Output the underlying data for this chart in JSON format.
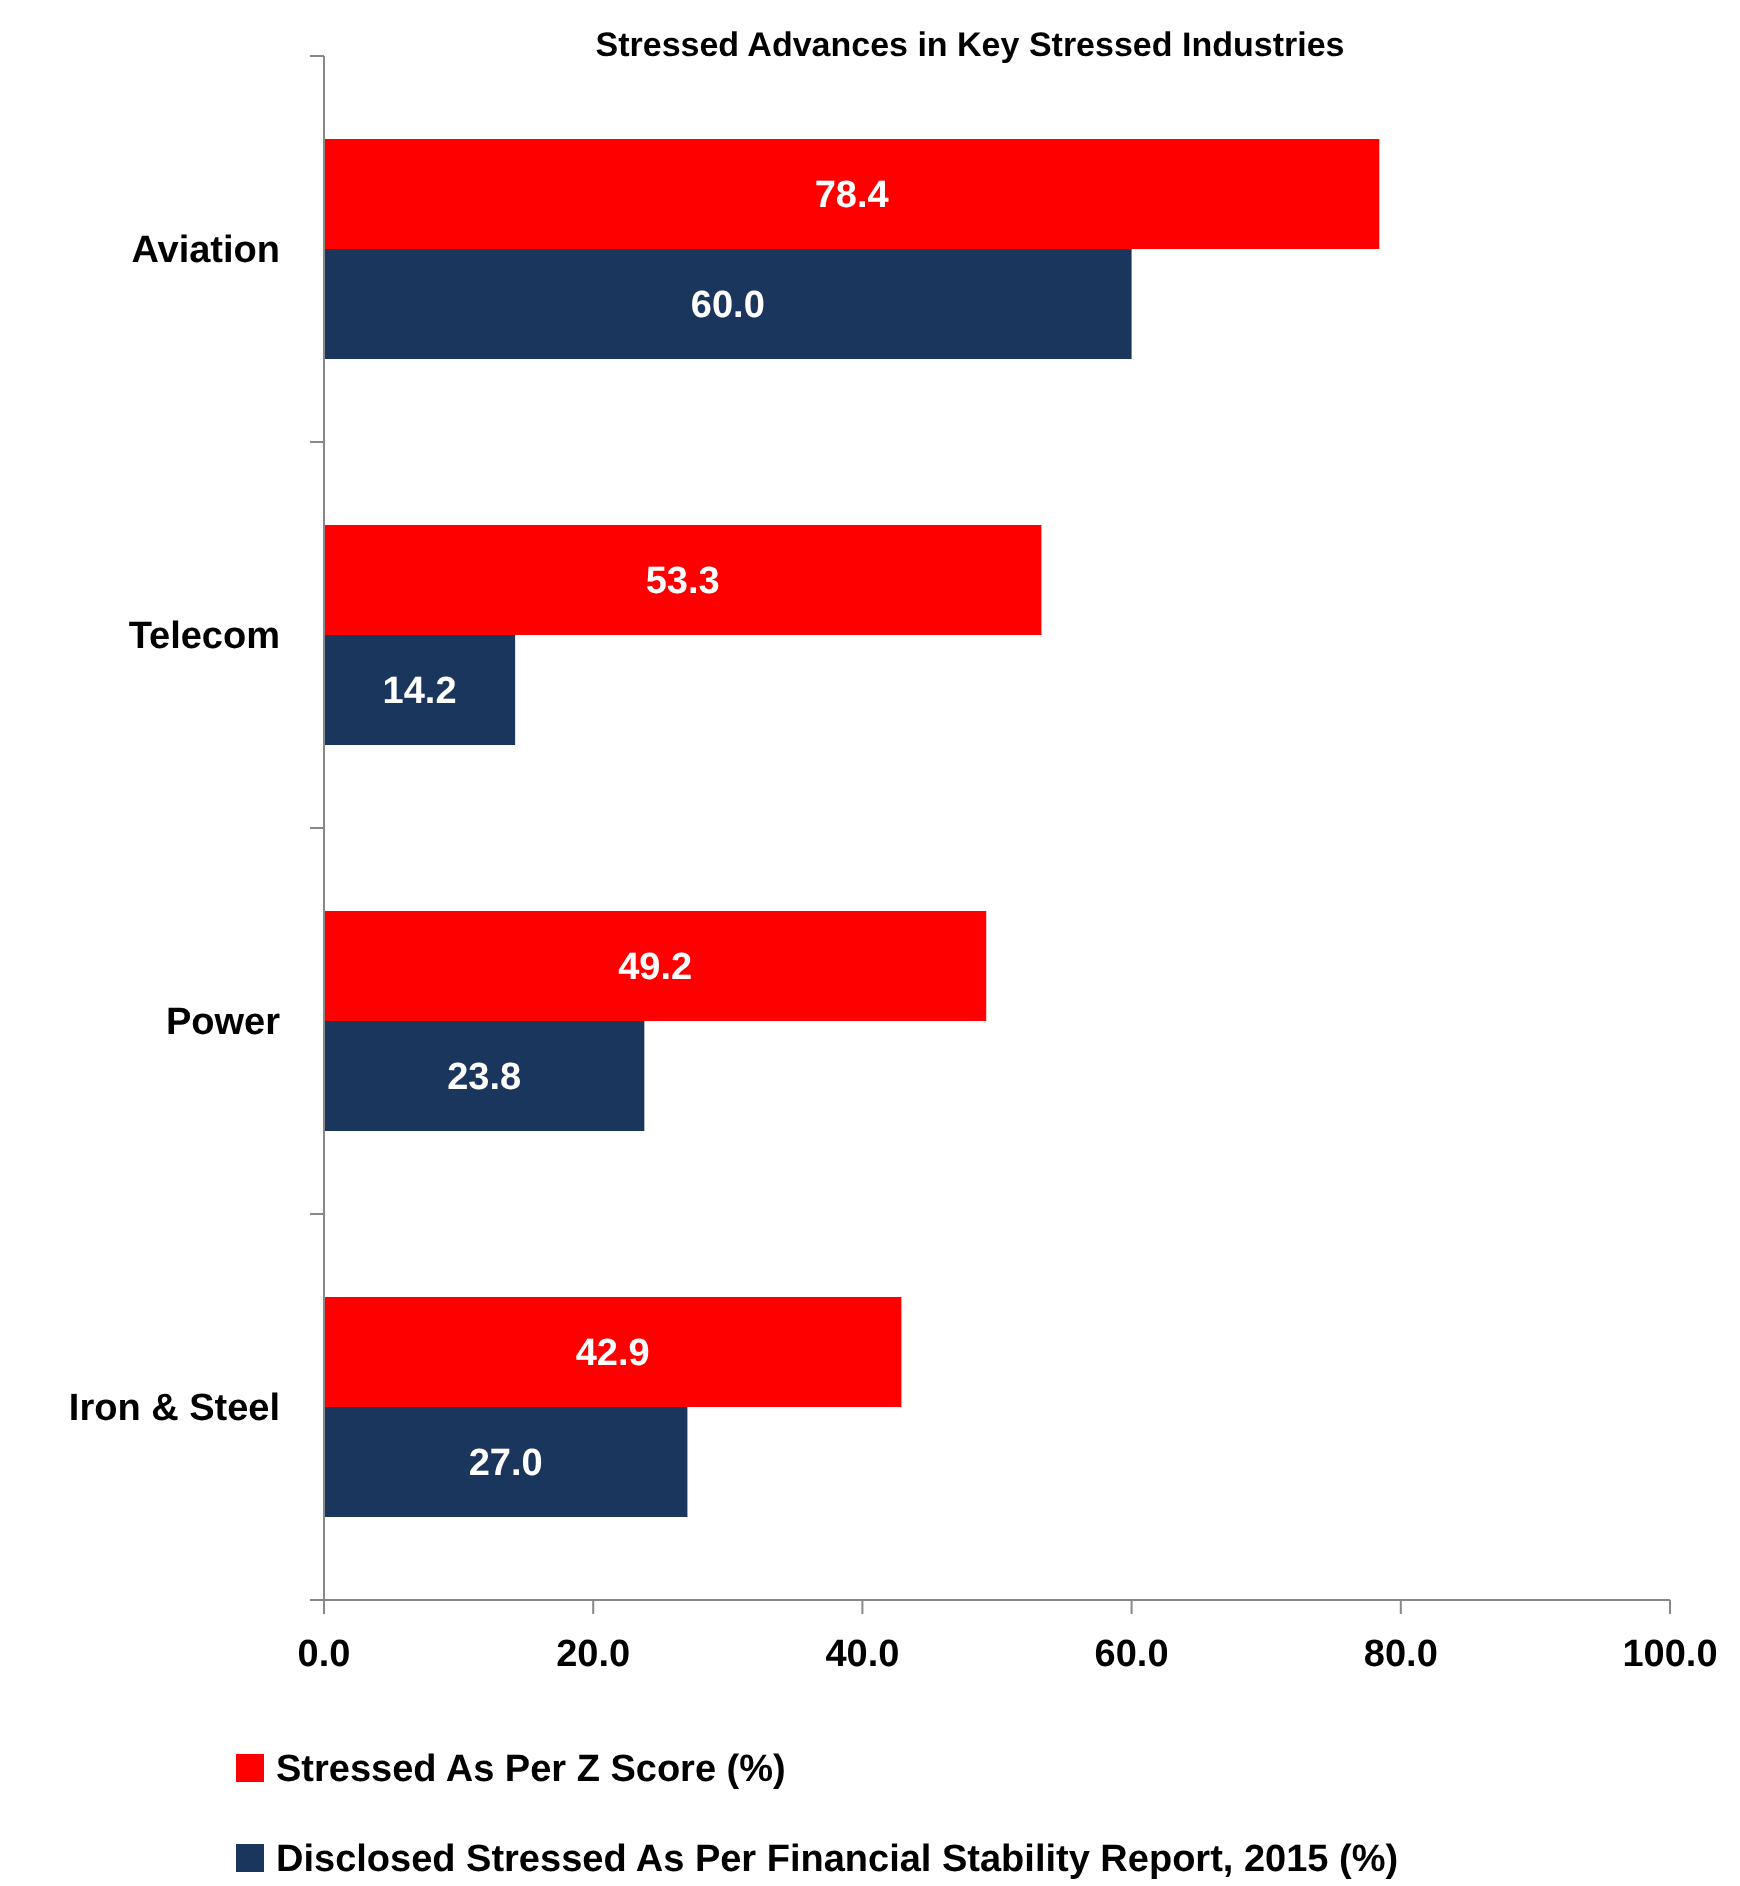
{
  "chart_data": {
    "type": "bar",
    "orientation": "horizontal",
    "title": "Stressed Advances in Key Stressed Industries",
    "categories": [
      "Aviation",
      "Telecom",
      "Power",
      "Iron & Steel"
    ],
    "series": [
      {
        "name": "Stressed As Per Z Score (%)",
        "color": "#ff0000",
        "values": [
          78.4,
          53.3,
          49.2,
          42.9
        ],
        "value_labels": [
          "78.4",
          "53.3",
          "49.2",
          "42.9"
        ]
      },
      {
        "name": "Disclosed Stressed As Per Financial Stability Report, 2015 (%)",
        "color": "#1b365d",
        "values": [
          60,
          14.2,
          23.8,
          27
        ],
        "value_labels": [
          "60.0",
          "14.2",
          "23.8",
          "27.0"
        ]
      }
    ],
    "xlim": [
      0,
      100
    ],
    "xticks": [
      {
        "value": 0,
        "label": "0.0"
      },
      {
        "value": 20,
        "label": "20.0"
      },
      {
        "value": 40,
        "label": "40.0"
      },
      {
        "value": 60,
        "label": "60.0"
      },
      {
        "value": 80,
        "label": "80.0"
      },
      {
        "value": 100,
        "label": "100.0"
      }
    ],
    "grid": false,
    "legend": "bottom"
  }
}
